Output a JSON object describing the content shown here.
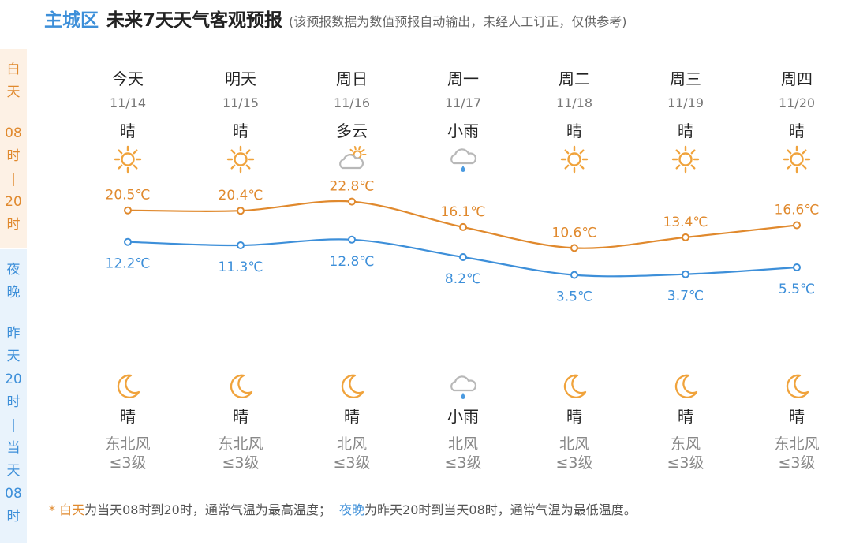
{
  "header": {
    "city": "主城区",
    "title": "未来7天天气客观预报",
    "note": "(该预报数据为数值预报自动输出，未经人工订正，仅供参考)"
  },
  "side": {
    "day": [
      "白",
      "天",
      "",
      "08",
      "时",
      "|",
      "20",
      "时"
    ],
    "night": [
      "夜",
      "晚",
      "",
      "昨",
      "天",
      "20",
      "时",
      "|",
      "当",
      "天",
      "08",
      "时"
    ]
  },
  "days": [
    {
      "weekday": "今天",
      "date": "11/14",
      "day_cond": "晴",
      "day_icon": "sun-icon",
      "high": "20.5℃",
      "low": "12.2℃",
      "night_icon": "moon-icon",
      "night_cond": "晴",
      "wind_dir": "东北风",
      "wind_level": "≤3级"
    },
    {
      "weekday": "明天",
      "date": "11/15",
      "day_cond": "晴",
      "day_icon": "sun-icon",
      "high": "20.4℃",
      "low": "11.3℃",
      "night_icon": "moon-icon",
      "night_cond": "晴",
      "wind_dir": "东北风",
      "wind_level": "≤3级"
    },
    {
      "weekday": "周日",
      "date": "11/16",
      "day_cond": "多云",
      "day_icon": "partly-cloudy-icon",
      "high": "22.8℃",
      "low": "12.8℃",
      "night_icon": "moon-icon",
      "night_cond": "晴",
      "wind_dir": "北风",
      "wind_level": "≤3级"
    },
    {
      "weekday": "周一",
      "date": "11/17",
      "day_cond": "小雨",
      "day_icon": "light-rain-icon",
      "high": "16.1℃",
      "low": "8.2℃",
      "night_icon": "light-rain-icon",
      "night_cond": "小雨",
      "wind_dir": "北风",
      "wind_level": "≤3级"
    },
    {
      "weekday": "周二",
      "date": "11/18",
      "day_cond": "晴",
      "day_icon": "sun-icon",
      "high": "10.6℃",
      "low": "3.5℃",
      "night_icon": "moon-icon",
      "night_cond": "晴",
      "wind_dir": "北风",
      "wind_level": "≤3级"
    },
    {
      "weekday": "周三",
      "date": "11/19",
      "day_cond": "晴",
      "day_icon": "sun-icon",
      "high": "13.4℃",
      "low": "3.7℃",
      "night_icon": "moon-icon",
      "night_cond": "晴",
      "wind_dir": "东风",
      "wind_level": "≤3级"
    },
    {
      "weekday": "周四",
      "date": "11/20",
      "day_cond": "晴",
      "day_icon": "sun-icon",
      "high": "16.6℃",
      "low": "5.5℃",
      "night_icon": "moon-icon",
      "night_cond": "晴",
      "wind_dir": "东北风",
      "wind_level": "≤3级"
    }
  ],
  "chart_data": {
    "type": "line",
    "categories": [
      "11/14",
      "11/15",
      "11/16",
      "11/17",
      "11/18",
      "11/19",
      "11/20"
    ],
    "series": [
      {
        "values": [
          20.5,
          20.4,
          22.8,
          16.1,
          10.6,
          13.4,
          16.6
        ],
        "color": "#e0892d"
      },
      {
        "values": [
          12.2,
          11.3,
          12.8,
          8.2,
          3.5,
          3.7,
          5.5
        ],
        "color": "#3d8fd9"
      }
    ]
  },
  "footnote": {
    "star": "* ",
    "day_term": "白天",
    "day_desc": "为当天08时到20时，通常气温为最高温度；",
    "night_term": "夜晚",
    "night_desc": "为昨天20时到当天08时，通常气温为最低温度。"
  },
  "colors": {
    "day": "#e0892d",
    "night": "#3d8fd9",
    "sun": "#f0a33c",
    "cloud": "#b8b8b8",
    "rain": "#4a9ae0"
  }
}
